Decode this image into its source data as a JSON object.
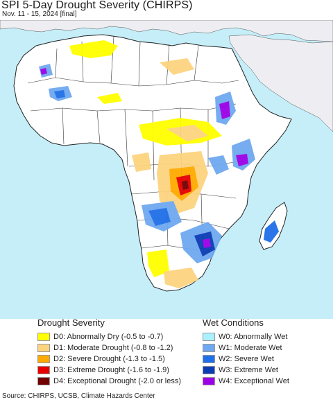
{
  "title": "SPI 5-Day Drought Severity (CHIRPS)",
  "subtitle": "Nov. 11 - 15, 2024 [final]",
  "colors": {
    "ocean": "#c5eef8",
    "land": "#ffffff",
    "mideast": "#ededf2",
    "border": "#333333"
  },
  "legend": {
    "drought_heading": "Drought Severity",
    "wet_heading": "Wet Conditions",
    "drought": [
      {
        "label": "D0: Abnormally Dry (-0.5 to -0.7)",
        "color": "#ffff00"
      },
      {
        "label": "D1: Moderate Drought (-0.8 to -1.2)",
        "color": "#fcd37f"
      },
      {
        "label": "D2: Severe Drought (-1.3 to -1.5)",
        "color": "#ffaa00"
      },
      {
        "label": "D3: Extreme Drought (-1.6 to -1.9)",
        "color": "#e60000"
      },
      {
        "label": "D4: Exceptional Drought (-2.0 or less)",
        "color": "#730000"
      }
    ],
    "wet": [
      {
        "label": "W0: Abnormally Wet",
        "color": "#aaf0ff"
      },
      {
        "label": "W1: Moderate Wet",
        "color": "#6fa8f0"
      },
      {
        "label": "W2: Severe Wet",
        "color": "#1f6fe8"
      },
      {
        "label": "W3: Extreme Wet",
        "color": "#0a3cb4"
      },
      {
        "label": "W4: Exceptional Wet",
        "color": "#9b00e6"
      }
    ]
  },
  "source": "Source: CHIRPS, UCSB, Climate Hazards Center"
}
